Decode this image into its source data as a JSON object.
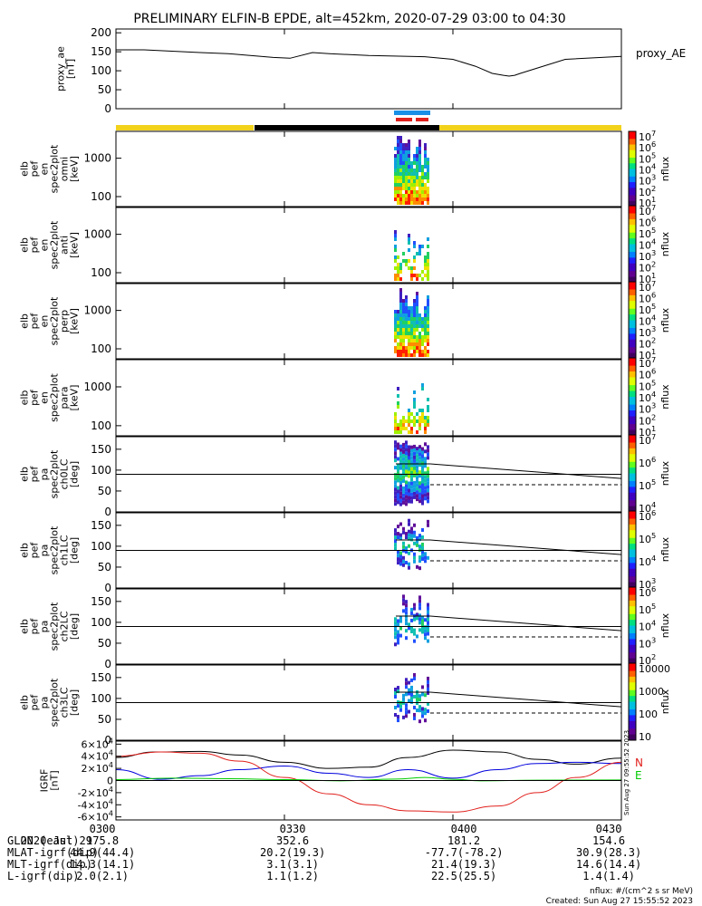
{
  "title": "PRELIMINARY ELFIN-B EPDE, alt=452km, 2020-07-29 03:00 to 04:30",
  "chart_data": [
    {
      "id": "proxy_ae",
      "type": "line",
      "ylabel": [
        "proxy_ae",
        "[nT]"
      ],
      "side_label": "proxy_AE",
      "ylim": [
        0,
        210
      ],
      "yticks": [
        0,
        50,
        100,
        150,
        200
      ],
      "x_minutes": [
        0,
        5,
        15,
        20,
        28,
        31,
        35,
        38,
        45,
        55,
        60,
        64,
        67,
        69,
        70,
        71,
        72,
        80,
        90
      ],
      "values": [
        155,
        155,
        148,
        145,
        135,
        133,
        148,
        145,
        140,
        137,
        130,
        112,
        93,
        88,
        86,
        88,
        93,
        130,
        138
      ]
    },
    {
      "id": "en_omni",
      "type": "heatmap",
      "ylabel": [
        "elb",
        "pef",
        "en",
        "spec2plot",
        "omni",
        "[keV]"
      ],
      "scale": "log",
      "yticks": [
        100,
        1000
      ],
      "colorbar": {
        "ticks": [
          "10^7",
          "10^6",
          "10^5",
          "10^4",
          "10^3",
          "10^2",
          "10^1"
        ],
        "label": "nflux"
      }
    },
    {
      "id": "en_anti",
      "type": "heatmap",
      "ylabel": [
        "elb",
        "pef",
        "en",
        "spec2plot",
        "anti",
        "[keV]"
      ],
      "scale": "log",
      "yticks": [
        100,
        1000
      ],
      "colorbar": {
        "ticks": [
          "10^7",
          "10^6",
          "10^5",
          "10^4",
          "10^3",
          "10^2",
          "10^1"
        ],
        "label": "nflux"
      }
    },
    {
      "id": "en_perp",
      "type": "heatmap",
      "ylabel": [
        "elb",
        "pef",
        "en",
        "spec2plot",
        "perp",
        "[keV]"
      ],
      "scale": "log",
      "yticks": [
        100,
        1000
      ],
      "colorbar": {
        "ticks": [
          "10^7",
          "10^6",
          "10^5",
          "10^4",
          "10^3",
          "10^2",
          "10^1"
        ],
        "label": "nflux"
      }
    },
    {
      "id": "en_para",
      "type": "heatmap",
      "ylabel": [
        "elb",
        "pef",
        "en",
        "spec2plot",
        "para",
        "[keV]"
      ],
      "scale": "log",
      "yticks": [
        100,
        1000
      ],
      "colorbar": {
        "ticks": [
          "10^7",
          "10^6",
          "10^5",
          "10^4",
          "10^3",
          "10^2",
          "10^1"
        ],
        "label": "nflux"
      }
    },
    {
      "id": "pa_ch0",
      "type": "heatmap",
      "ylabel": [
        "elb",
        "pef",
        "pa",
        "spec2plot",
        "ch0LC",
        "[deg]"
      ],
      "ylim": [
        0,
        180
      ],
      "yticks": [
        0,
        50,
        100,
        150
      ],
      "colorbar": {
        "ticks": [
          "10^7",
          "10^6",
          "10^5",
          "10^4"
        ],
        "label": "nflux"
      }
    },
    {
      "id": "pa_ch1",
      "type": "heatmap",
      "ylabel": [
        "elb",
        "pef",
        "pa",
        "spec2plot",
        "ch1LC",
        "[deg]"
      ],
      "ylim": [
        0,
        180
      ],
      "yticks": [
        0,
        50,
        100,
        150
      ],
      "colorbar": {
        "ticks": [
          "10^6",
          "10^5",
          "10^4",
          "10^3"
        ],
        "label": "nflux"
      }
    },
    {
      "id": "pa_ch2",
      "type": "heatmap",
      "ylabel": [
        "elb",
        "pef",
        "pa",
        "spec2plot",
        "ch2LC",
        "[deg]"
      ],
      "ylim": [
        0,
        180
      ],
      "yticks": [
        0,
        50,
        100,
        150
      ],
      "colorbar": {
        "ticks": [
          "10^6",
          "10^5",
          "10^4",
          "10^3",
          "10^2"
        ],
        "label": "nflux"
      }
    },
    {
      "id": "pa_ch3",
      "type": "heatmap",
      "ylabel": [
        "elb",
        "pef",
        "pa",
        "spec2plot",
        "ch3LC",
        "[deg]"
      ],
      "ylim": [
        0,
        180
      ],
      "yticks": [
        0,
        50,
        100,
        150
      ],
      "colorbar": {
        "ticks": [
          "10000",
          "1000",
          "100",
          "10"
        ],
        "label": "nflux"
      }
    },
    {
      "id": "igrf",
      "type": "line",
      "ylabel": [
        "IGRF",
        "[nT]"
      ],
      "ylim": [
        -65000,
        65000
      ],
      "yticks": [
        "-6×10^4",
        "-4×10^4",
        "-2×10^4",
        "0",
        "2×10^4",
        "4×10^4",
        "6×10^4"
      ],
      "ytick_values": [
        -60000,
        -40000,
        -20000,
        0,
        20000,
        40000,
        60000
      ],
      "legend": [
        "N",
        "E"
      ],
      "legend_colors": [
        "#e0201c",
        "#00cc00"
      ],
      "side_stamp": "Sun Aug 27 09:55:52 2023",
      "series": [
        {
          "x_minutes": [
            0,
            7,
            15,
            22,
            30,
            38,
            45,
            52,
            60,
            68,
            75,
            82,
            90
          ],
          "values": [
            38000,
            47000,
            48000,
            42000,
            30000,
            20000,
            22000,
            38000,
            50000,
            47000,
            35000,
            27000,
            37000
          ],
          "color": "#000000"
        },
        {
          "x_minutes": [
            0,
            8,
            15,
            22,
            30,
            38,
            45,
            52,
            60,
            68,
            75,
            82,
            90
          ],
          "values": [
            18000,
            2000,
            8000,
            18000,
            24000,
            12000,
            5000,
            18000,
            4000,
            18000,
            28000,
            30000,
            28000
          ],
          "color": "#0000dd"
        },
        {
          "x_minutes": [
            0,
            8,
            15,
            22,
            30,
            38,
            45,
            52,
            60,
            68,
            75,
            82,
            90
          ],
          "values": [
            40000,
            47000,
            45000,
            32000,
            5000,
            -22000,
            -40000,
            -50000,
            -52000,
            -42000,
            -20000,
            5000,
            30000
          ],
          "color": "#e0201c"
        },
        {
          "x_minutes": [
            0,
            10,
            20,
            30,
            40,
            50,
            55,
            60,
            65,
            75,
            90
          ],
          "values": [
            1500,
            4000,
            3000,
            1500,
            -500,
            2500,
            5000,
            2000,
            -500,
            500,
            1000
          ],
          "color": "#00cc00"
        }
      ]
    }
  ],
  "time_axis": {
    "ticks": [
      "0300",
      "0330",
      "0400",
      "0430"
    ],
    "tick_minutes": [
      0,
      30,
      60,
      90
    ],
    "range_minutes": [
      0,
      90
    ]
  },
  "footer_table": {
    "rows": [
      {
        "label": "2020 Jul 29",
        "values": [
          "0300",
          "0330",
          "0400",
          "0430"
        ]
      },
      {
        "label": "GLON (east)",
        "values": [
          "175.8",
          "352.6",
          "181.2",
          "154.6"
        ]
      },
      {
        "label": "MLAT-igrf(dip)",
        "values": [
          "44.9(44.4)",
          "20.2(19.3)",
          "-77.7(-78.2)",
          "30.9(28.3)"
        ]
      },
      {
        "label": "MLT-igrf(dip)",
        "values": [
          "14.3(14.1)",
          "3.1(3.1)",
          "21.4(19.3)",
          "14.6(14.4)"
        ]
      },
      {
        "label": "L-igrf(dip)",
        "values": [
          "2.0(2.1)",
          "1.1(1.2)",
          "22.5(25.5)",
          "1.4(1.4)"
        ]
      }
    ]
  },
  "footer_note": {
    "units": "nflux: #/(cm^2 s sr MeV)",
    "created": "Created: Sun Aug 27 15:55:52 2023"
  }
}
